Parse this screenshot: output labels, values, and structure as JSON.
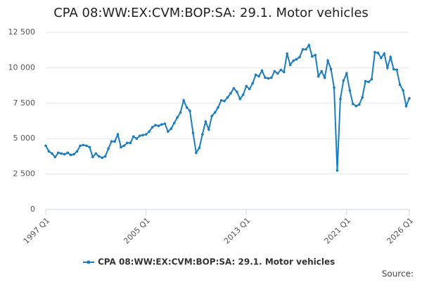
{
  "chart_data": {
    "type": "line",
    "title": "CPA 08:WW:EX:CVM:BOP:SA: 29.1. Motor vehicles",
    "source": "Source:",
    "categories": [
      "1997 Q1",
      null,
      null,
      null,
      null,
      null,
      null,
      null,
      null,
      null,
      null,
      null,
      null,
      null,
      null,
      null,
      null,
      null,
      null,
      null,
      null,
      null,
      null,
      null,
      null,
      null,
      null,
      null,
      null,
      null,
      null,
      null,
      "2005 Q1",
      null,
      null,
      null,
      null,
      null,
      null,
      null,
      null,
      null,
      null,
      null,
      null,
      null,
      null,
      null,
      null,
      null,
      null,
      null,
      null,
      null,
      null,
      null,
      null,
      null,
      null,
      null,
      null,
      null,
      null,
      null,
      "2013 Q1",
      null,
      null,
      null,
      null,
      null,
      null,
      null,
      null,
      null,
      null,
      null,
      null,
      null,
      null,
      null,
      null,
      null,
      null,
      null,
      null,
      null,
      null,
      null,
      null,
      null,
      null,
      null,
      null,
      null,
      null,
      null,
      "2021 Q1",
      null,
      null,
      null,
      null,
      null,
      null,
      null,
      null,
      null,
      null,
      null,
      null,
      null,
      null,
      null,
      null,
      null,
      null,
      null,
      "2026 Q1"
    ],
    "series": [
      {
        "name": "CPA 08:WW:EX:CVM:BOP:SA: 29.1. Motor vehicles",
        "color": "#1a7dbf",
        "values": [
          4500,
          4100,
          3950,
          3700,
          4000,
          3950,
          3900,
          4000,
          3850,
          3900,
          4100,
          4500,
          4550,
          4500,
          4400,
          3700,
          3950,
          3750,
          3650,
          3750,
          4300,
          4800,
          4800,
          5300,
          4400,
          4500,
          4700,
          4700,
          5150,
          5000,
          5200,
          5250,
          5300,
          5500,
          5800,
          5950,
          5900,
          6000,
          6050,
          5500,
          5700,
          6100,
          6500,
          6850,
          7700,
          7200,
          6950,
          5400,
          4000,
          4350,
          5300,
          6200,
          5650,
          6600,
          6850,
          7200,
          7700,
          7650,
          7900,
          8200,
          8550,
          8300,
          7800,
          8100,
          8700,
          8500,
          8900,
          9500,
          9400,
          9800,
          9300,
          9250,
          9300,
          9750,
          9600,
          9850,
          9700,
          11000,
          10200,
          10500,
          10600,
          10750,
          11300,
          11300,
          11600,
          10800,
          10900,
          9400,
          9750,
          9300,
          10500,
          9900,
          8600,
          2750,
          7800,
          9100,
          9600,
          8400,
          7450,
          7300,
          7400,
          7900,
          9050,
          9000,
          9200,
          11100,
          11050,
          10700,
          11000,
          10000,
          10750,
          9900,
          9850,
          8800,
          8400,
          7300,
          7850
        ]
      }
    ],
    "ylim": [
      0,
      12500
    ],
    "yticks": [
      0,
      {
        "value": 2500,
        "label": "2 500"
      },
      {
        "value": 5000,
        "label": "5 000"
      },
      {
        "value": 7500,
        "label": "7 500"
      },
      {
        "value": 10000,
        "label": "10 000"
      },
      {
        "value": 12500,
        "label": "12 500"
      }
    ],
    "grid": true
  }
}
